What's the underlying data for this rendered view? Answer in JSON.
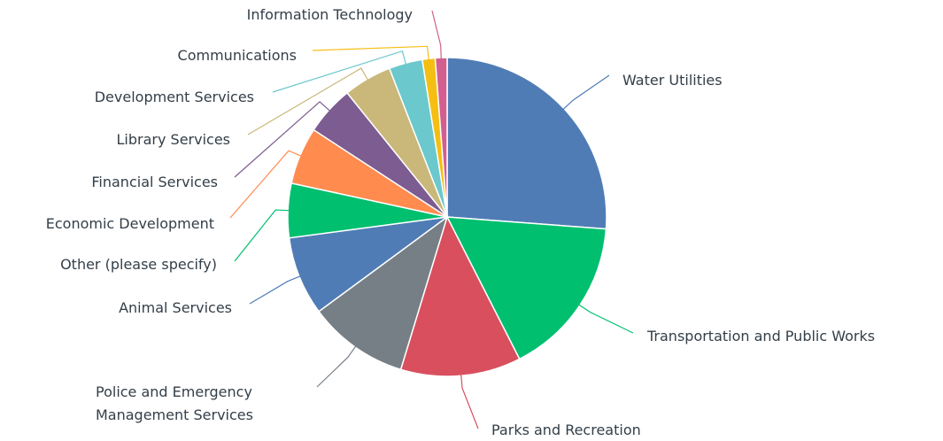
{
  "chart_data": {
    "type": "pie",
    "categories": [
      "Water Utilities",
      "Transportation and Public Works",
      "Parks and Recreation",
      "Police and Emergency Management Services",
      "Animal Services",
      "Other (please specify)",
      "Economic Development",
      "Financial Services",
      "Library Services",
      "Development Services",
      "Communications",
      "Information Technology"
    ],
    "values": [
      26.2,
      16.3,
      12.2,
      10.2,
      8.0,
      5.5,
      5.8,
      5.0,
      4.9,
      3.4,
      1.3,
      1.2
    ],
    "colors": [
      "#507cb6",
      "#00bf6f",
      "#d94f5e",
      "#777f86",
      "#507cb6",
      "#00bf6f",
      "#ff8b4f",
      "#7d5c91",
      "#c9b87a",
      "#6bc8cd",
      "#f5be13",
      "#d25f90"
    ]
  }
}
